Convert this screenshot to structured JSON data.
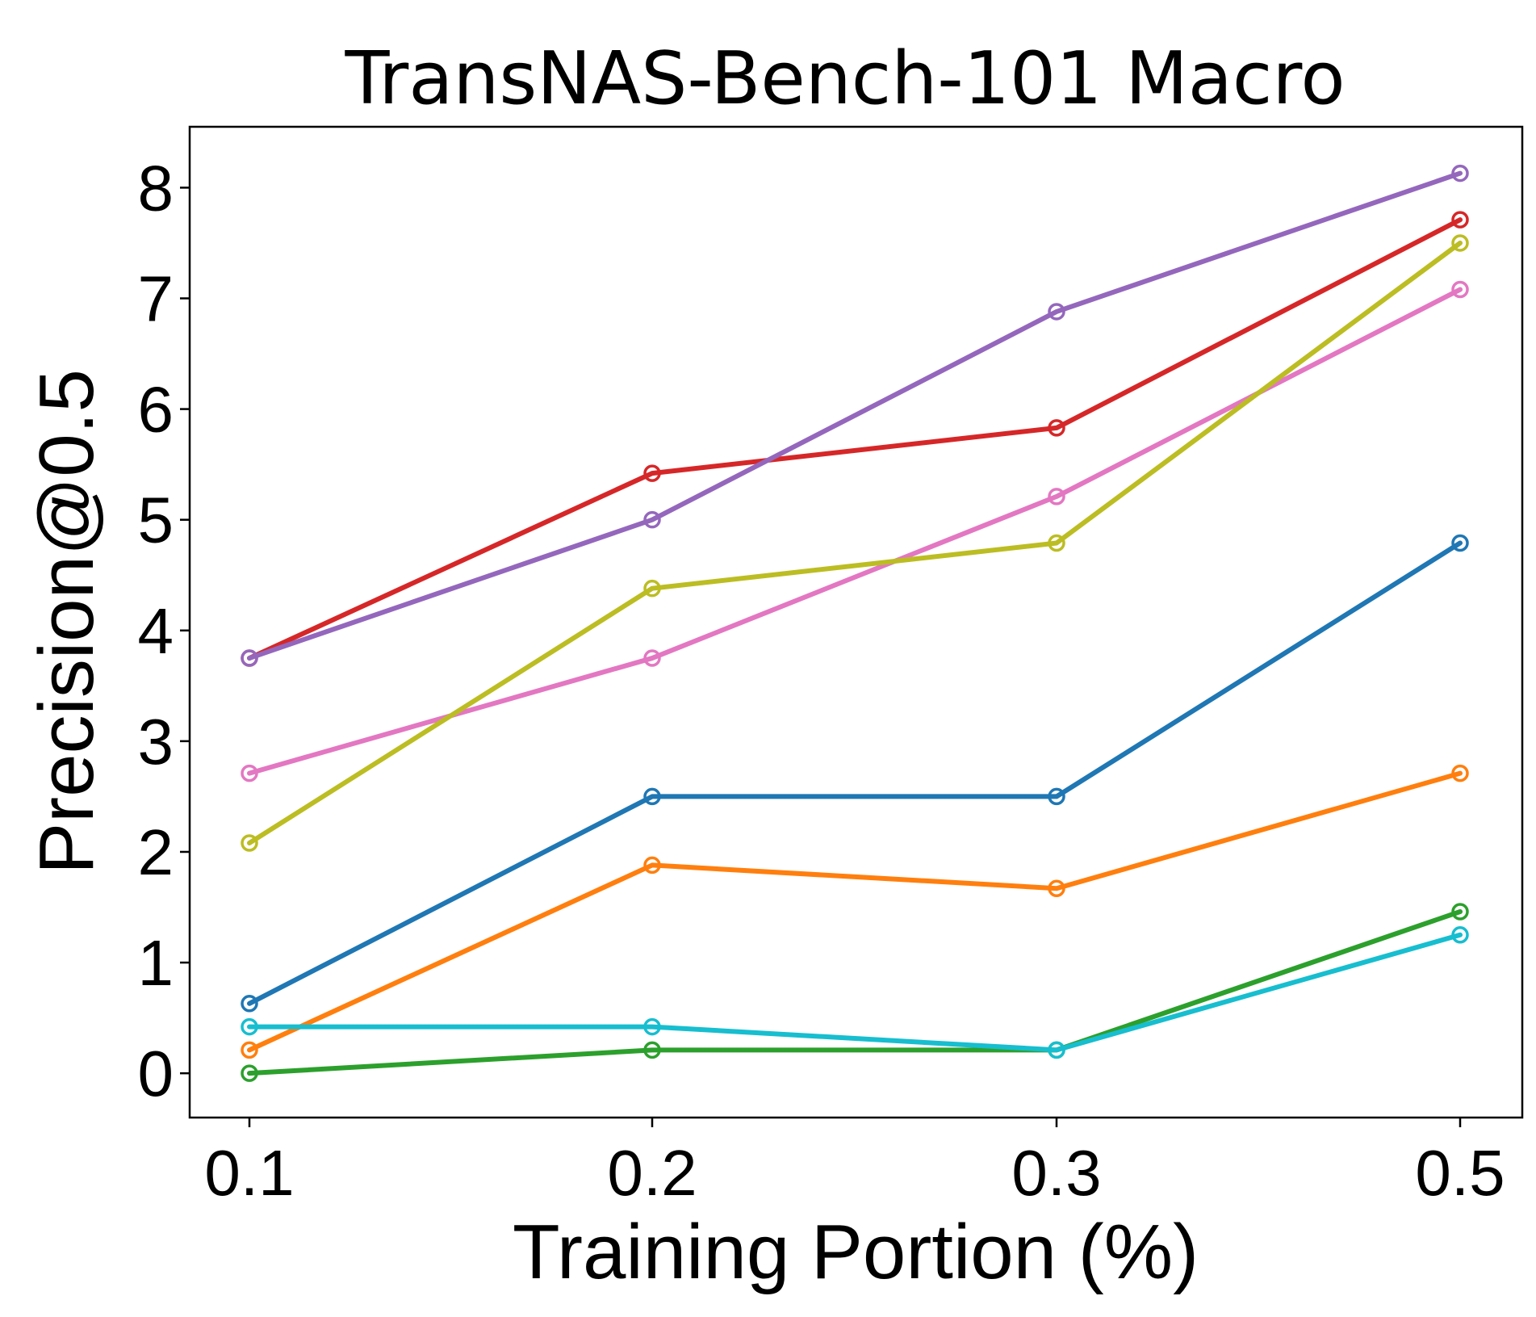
{
  "chart_data": {
    "type": "line",
    "title": "TransNAS-Bench-101 Macro",
    "xlabel": "Training Portion (%)",
    "ylabel": "Precision@0.5",
    "categories": [
      "0.1",
      "0.2",
      "0.3",
      "0.5"
    ],
    "yticks": [
      "0",
      "1",
      "2",
      "3",
      "4",
      "5",
      "6",
      "7",
      "8"
    ],
    "ylim": [
      -0.4,
      8.55
    ],
    "grid": false,
    "legend": "none",
    "marker": "hollow-circle",
    "series": [
      {
        "color": "#1f77b4",
        "values": [
          0.63,
          2.5,
          2.5,
          4.79
        ]
      },
      {
        "color": "#ff7f0e",
        "values": [
          0.21,
          1.88,
          1.67,
          2.71
        ]
      },
      {
        "color": "#2ca02c",
        "values": [
          0.0,
          0.21,
          0.21,
          1.46
        ]
      },
      {
        "color": "#d62728",
        "values": [
          3.75,
          5.42,
          5.83,
          7.71
        ]
      },
      {
        "color": "#9467bd",
        "values": [
          3.75,
          5.0,
          6.88,
          8.13
        ]
      },
      {
        "color": "#e377c2",
        "values": [
          2.71,
          3.75,
          5.21,
          7.08
        ]
      },
      {
        "color": "#bcbd22",
        "values": [
          2.08,
          4.38,
          4.79,
          7.5
        ]
      },
      {
        "color": "#17becf",
        "values": [
          0.42,
          0.42,
          0.21,
          1.25
        ]
      }
    ]
  }
}
